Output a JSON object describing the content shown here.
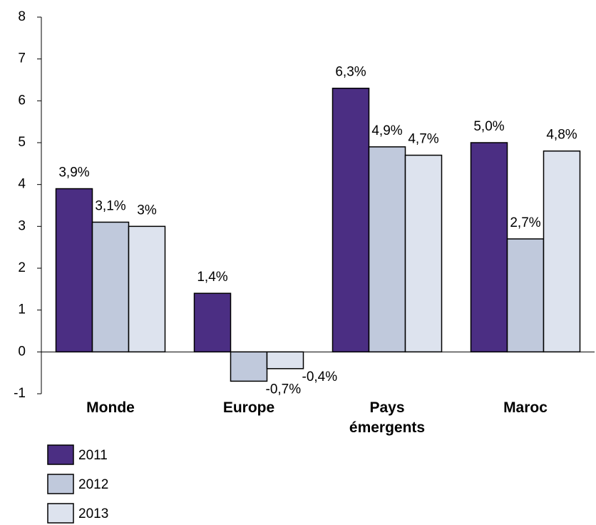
{
  "chart_data": {
    "type": "bar",
    "categories": [
      "Monde",
      "Europe",
      "Pays émergents",
      "Maroc"
    ],
    "series": [
      {
        "name": "2011",
        "color": "#4b2e83",
        "values": [
          3.9,
          1.4,
          6.3,
          5.0
        ],
        "value_labels": [
          "3,9%",
          "1,4%",
          "6,3%",
          "5,0%"
        ]
      },
      {
        "name": "2012",
        "color": "#c0c9dc",
        "values": [
          3.1,
          -0.7,
          4.9,
          2.7
        ],
        "value_labels": [
          "3,1%",
          "-0,7%",
          "4,9%",
          "2,7%"
        ]
      },
      {
        "name": "2013",
        "color": "#dde3ee",
        "values": [
          3,
          -0.4,
          4.7,
          4.8
        ],
        "value_labels": [
          "3%",
          "-0,4%",
          "4,7%",
          "4,8%"
        ]
      }
    ],
    "ylim": [
      -1,
      8
    ],
    "yticks": [
      -1,
      0,
      1,
      2,
      3,
      4,
      5,
      6,
      7,
      8
    ],
    "grid": false,
    "legend": "bottom-left"
  }
}
